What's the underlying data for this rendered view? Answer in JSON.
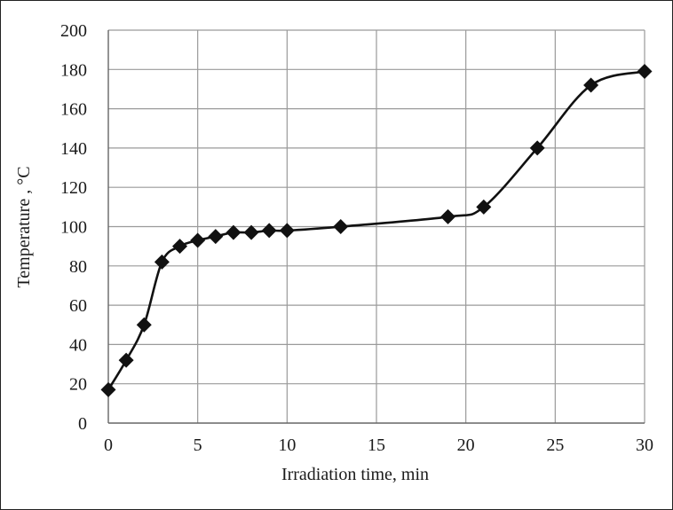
{
  "chart_data": {
    "type": "line",
    "title": "",
    "xlabel": "Irradiation time, min",
    "ylabel": "Temperature , °C",
    "xlim": [
      0,
      30
    ],
    "ylim": [
      0,
      200
    ],
    "xticks": [
      0,
      5,
      10,
      15,
      20,
      25,
      30
    ],
    "yticks": [
      0,
      20,
      40,
      60,
      80,
      100,
      120,
      140,
      160,
      180,
      200
    ],
    "grid": true,
    "legend": "none",
    "marker": "diamond",
    "line_color": "#111111",
    "grid_color": "#9a9a9a",
    "series": [
      {
        "x": [
          0,
          1,
          2,
          3,
          4,
          5,
          6,
          7,
          8,
          9,
          10,
          13,
          19,
          21,
          24,
          27,
          30
        ],
        "y": [
          17,
          32,
          50,
          82,
          90,
          93,
          95,
          97,
          97,
          98,
          98,
          100,
          105,
          110,
          140,
          172,
          179
        ]
      }
    ]
  }
}
